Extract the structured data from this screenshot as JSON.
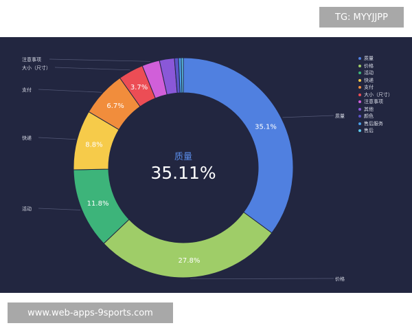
{
  "watermark_tag": "TG: MYYJJPP",
  "watermark_site": "www.web-apps-9sports.com",
  "chart_data": {
    "type": "pie",
    "variant": "donut",
    "center_label": "质量",
    "center_value": "35.11%",
    "slices": [
      {
        "name": "质量",
        "value": 35.1,
        "label": "35.1%",
        "color": "#5080e0"
      },
      {
        "name": "价格",
        "value": 27.8,
        "label": "27.8%",
        "color": "#9fcd68"
      },
      {
        "name": "活动",
        "value": 11.8,
        "label": "11.8%",
        "color": "#3db47a"
      },
      {
        "name": "快递",
        "value": 8.8,
        "label": "8.8%",
        "color": "#f6cb4a"
      },
      {
        "name": "支付",
        "value": 6.7,
        "label": "6.7%",
        "color": "#f18d3c"
      },
      {
        "name": "大小（尺寸）",
        "value": 3.7,
        "label": "3.7%",
        "color": "#ec4d55"
      },
      {
        "name": "注意事项",
        "value": 2.6,
        "label": "",
        "color": "#d15fd9"
      },
      {
        "name": "其他",
        "value": 2.2,
        "label": "",
        "color": "#8a58d8"
      },
      {
        "name": "颜色",
        "value": 0.6,
        "label": "",
        "color": "#5a54c8"
      },
      {
        "name": "售后服务",
        "value": 0.4,
        "label": "",
        "color": "#4a9fe8"
      },
      {
        "name": "售后",
        "value": 0.3,
        "label": "",
        "color": "#5ec8ec"
      }
    ],
    "legend": [
      {
        "name": "质量",
        "color": "#5080e0"
      },
      {
        "name": "价格",
        "color": "#9fcd68"
      },
      {
        "name": "活动",
        "color": "#3db47a"
      },
      {
        "name": "快递",
        "color": "#f6cb4a"
      },
      {
        "name": "支付",
        "color": "#f18d3c"
      },
      {
        "name": "大小（尺寸）",
        "color": "#ec4d55"
      },
      {
        "name": "注意事项",
        "color": "#d15fd9"
      },
      {
        "name": "其他",
        "color": "#8a58d8"
      },
      {
        "name": "颜色",
        "color": "#5a54c8"
      },
      {
        "name": "售后服务",
        "color": "#4a9fe8"
      },
      {
        "name": "售后",
        "color": "#5ec8ec"
      }
    ],
    "legend_position": "right",
    "outside_labels": [
      "质量",
      "价格",
      "活动",
      "快递",
      "支付",
      "大小（尺寸）",
      "注意事项"
    ],
    "background": "#222640",
    "center_label_color": "#5a8ce8",
    "center_value_color": "#ffffff"
  }
}
